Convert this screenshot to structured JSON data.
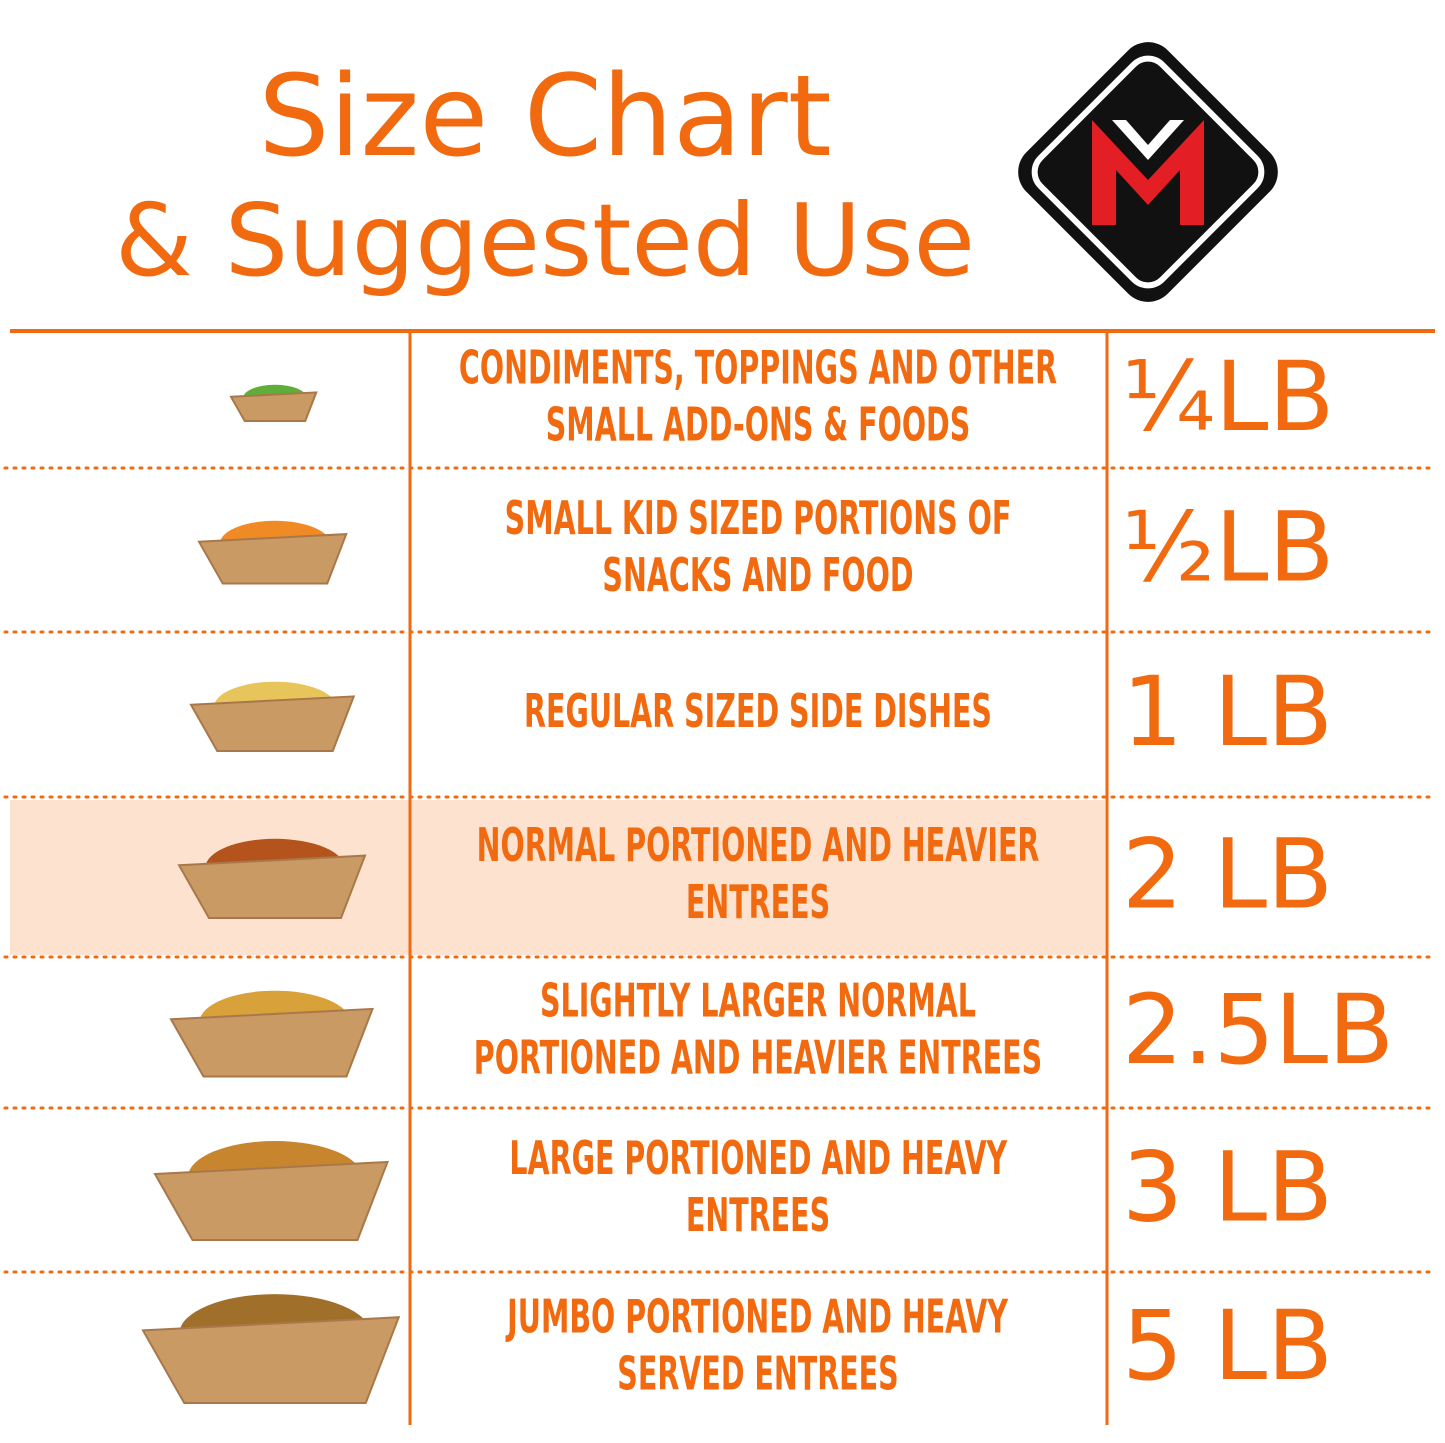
{
  "header": {
    "title": [
      "Size Chart",
      "& Suggested Use"
    ]
  },
  "table": {
    "rows": [
      {
        "description": [
          "CONDIMENTS, TOPPINGS AND OTHER",
          "SMALL ADD-ONS & FOODS"
        ],
        "size": "¼LB"
      },
      {
        "description": [
          "SMALL KID SIZED PORTIONS OF",
          "SNACKS AND FOOD"
        ],
        "size": "½LB"
      },
      {
        "description": [
          "REGULAR SIZED SIDE DISHES"
        ],
        "size": "1 LB"
      },
      {
        "description": [
          "NORMAL PORTIONED AND HEAVIER",
          "ENTREES"
        ],
        "size": "2 LB"
      },
      {
        "description": [
          "SLIGHTLY LARGER NORMAL",
          "PORTIONED AND HEAVIER ENTREES"
        ],
        "size": "2.5LB"
      },
      {
        "description": [
          "LARGE PORTIONED AND HEAVY",
          "ENTREES"
        ],
        "size": "3 LB"
      },
      {
        "description": [
          "JUMBO PORTIONED AND HEAVY",
          "SERVED ENTREES"
        ],
        "size": "5 LB"
      }
    ]
  }
}
